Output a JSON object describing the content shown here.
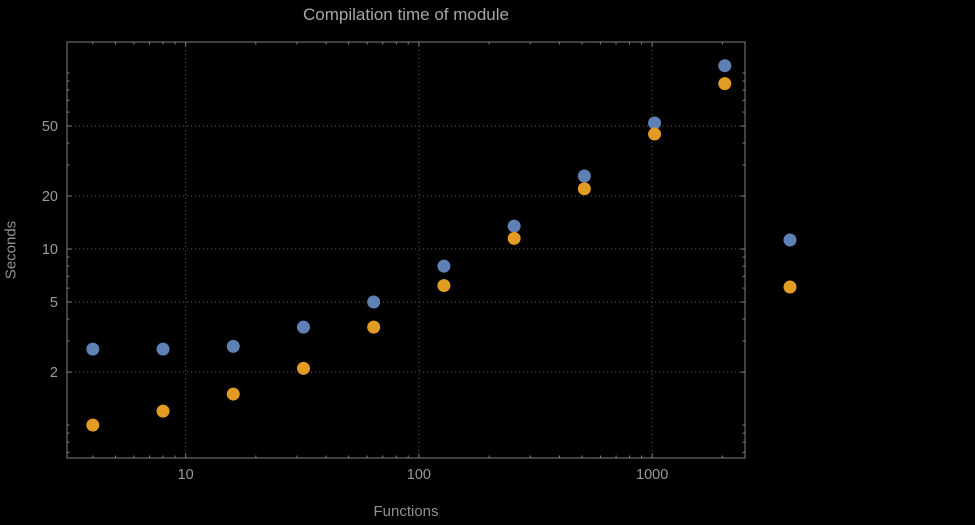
{
  "chart_data": {
    "type": "scatter",
    "title": "Compilation time of module",
    "xlabel": "Functions",
    "ylabel": "Seconds",
    "x_scale": "log",
    "y_scale": "log",
    "grid": true,
    "x": [
      4,
      8,
      16,
      32,
      64,
      128,
      256,
      512,
      1024,
      2048
    ],
    "series": [
      {
        "name": "",
        "color": "#5e81b5",
        "values": [
          2.7,
          2.7,
          2.8,
          3.6,
          5.0,
          8.0,
          13.5,
          26,
          52,
          110
        ]
      },
      {
        "name": "",
        "color": "#e39c23",
        "values": [
          1.0,
          1.2,
          1.5,
          2.1,
          3.6,
          6.2,
          11.5,
          22,
          45,
          87
        ]
      }
    ],
    "x_ticks": [
      10,
      100,
      1000
    ],
    "y_ticks": [
      2,
      5,
      10,
      20,
      50
    ],
    "xlim": [
      3.1,
      2500
    ],
    "ylim": [
      0.65,
      150
    ],
    "legend_position": "right",
    "legend_labels_visible": false
  },
  "style": {
    "background": "#000000",
    "title_color": "#a6a6a6",
    "axis_label_color": "#909090",
    "tick_label_color": "#9a9a9a",
    "frame_color": "#7f7f7f",
    "grid_color": "#5d5d5d",
    "series_blue": "#5e81b5",
    "series_orange": "#e39c23"
  }
}
